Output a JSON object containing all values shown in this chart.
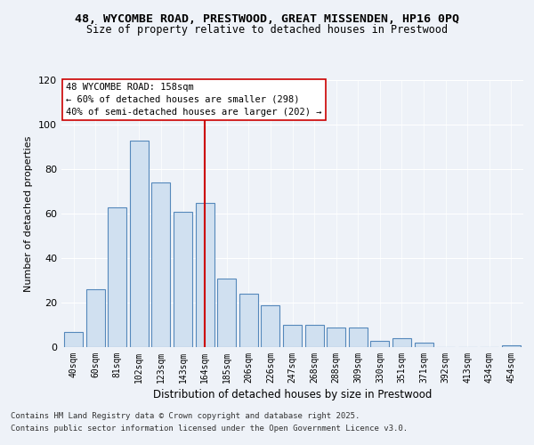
{
  "title_line1": "48, WYCOMBE ROAD, PRESTWOOD, GREAT MISSENDEN, HP16 0PQ",
  "title_line2": "Size of property relative to detached houses in Prestwood",
  "xlabel": "Distribution of detached houses by size in Prestwood",
  "ylabel": "Number of detached properties",
  "bar_labels": [
    "40sqm",
    "60sqm",
    "81sqm",
    "102sqm",
    "123sqm",
    "143sqm",
    "164sqm",
    "185sqm",
    "206sqm",
    "226sqm",
    "247sqm",
    "268sqm",
    "288sqm",
    "309sqm",
    "330sqm",
    "351sqm",
    "371sqm",
    "392sqm",
    "413sqm",
    "434sqm",
    "454sqm"
  ],
  "bar_values": [
    7,
    26,
    63,
    93,
    74,
    61,
    65,
    31,
    24,
    19,
    10,
    10,
    9,
    9,
    3,
    4,
    2,
    0,
    0,
    0,
    1
  ],
  "bar_color": "#d0e0f0",
  "bar_edge_color": "#5588bb",
  "vline_x": 6,
  "vline_color": "#cc0000",
  "annotation_text": "48 WYCOMBE ROAD: 158sqm\n← 60% of detached houses are smaller (298)\n40% of semi-detached houses are larger (202) →",
  "ylim": [
    0,
    120
  ],
  "yticks": [
    0,
    20,
    40,
    60,
    80,
    100,
    120
  ],
  "footer_line1": "Contains HM Land Registry data © Crown copyright and database right 2025.",
  "footer_line2": "Contains public sector information licensed under the Open Government Licence v3.0.",
  "bg_color": "#eef2f8",
  "plot_bg_color": "#eef2f8",
  "grid_color": "#ffffff",
  "annotation_border_color": "#cc0000"
}
